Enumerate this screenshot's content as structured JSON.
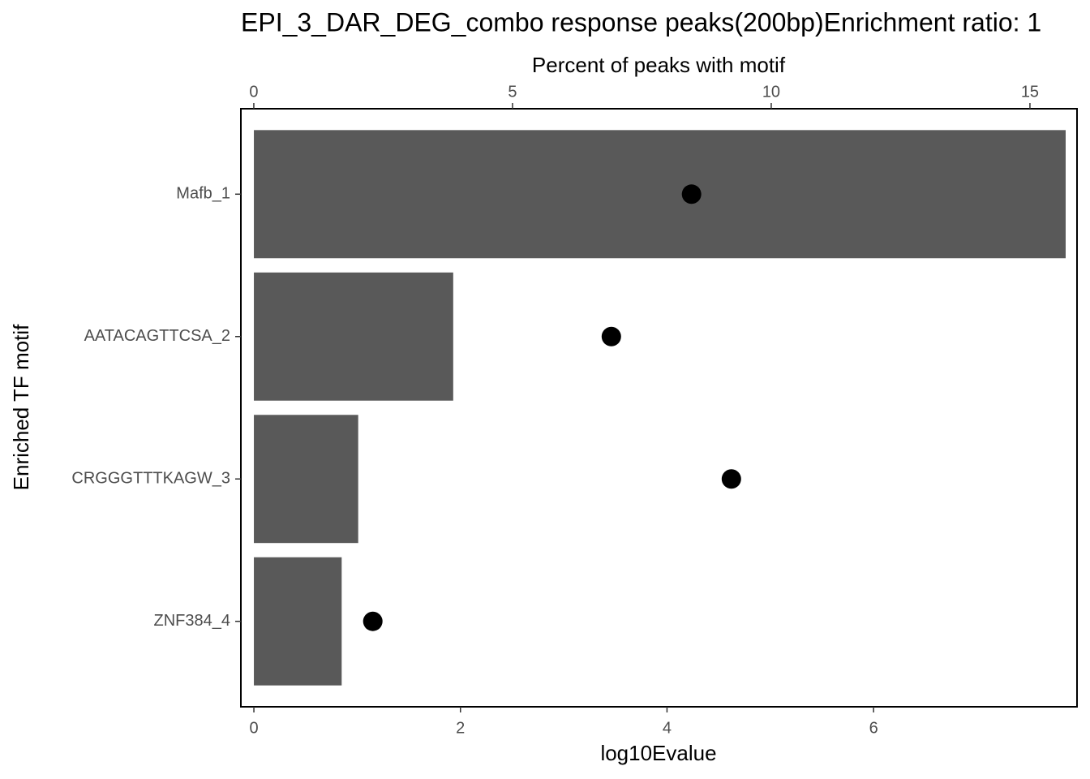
{
  "chart_data": {
    "type": "bar",
    "orientation": "horizontal",
    "title": "EPI_3_DAR_DEG_combo response peaks(200bp)Enrichment ratio: 1",
    "x_label": "log10Evalue",
    "x2_label": "Percent of peaks with motif",
    "y_label": "Enriched TF motif",
    "categories": [
      "Mafb_1",
      "AATACAGTTCSA_2",
      "CRGGGTTTKAGW_3",
      "ZNF384_4"
    ],
    "series": [
      {
        "type": "bar",
        "color": "#595959",
        "values": [
          7.86,
          1.93,
          1.01,
          0.85
        ]
      },
      {
        "type": "point",
        "axis": "x2",
        "color": "#000000",
        "values": [
          8.46,
          6.91,
          9.23,
          2.3
        ]
      }
    ],
    "xlim": [
      -0.126,
      7.97
    ],
    "xticks": [
      0,
      2,
      4,
      6
    ],
    "x2lim": [
      -0.25,
      15.91
    ],
    "x2ticks": [
      0,
      5,
      10,
      15
    ],
    "grid": false
  }
}
